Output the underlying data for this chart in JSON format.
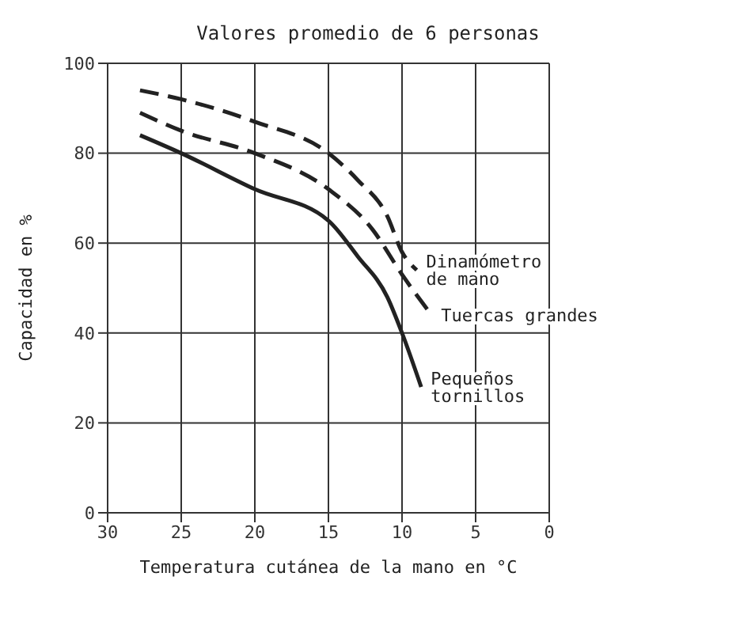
{
  "chart_data": {
    "type": "line",
    "title": "Valores promedio de 6 personas",
    "xlabel": "Temperatura cutánea de la mano en °C",
    "ylabel": "Capacidad en %",
    "xlim": [
      30,
      0
    ],
    "xticks": [
      30,
      25,
      20,
      15,
      10,
      5,
      0
    ],
    "ylim": [
      0,
      100
    ],
    "yticks": [
      0,
      20,
      40,
      60,
      80,
      100
    ],
    "grid": true,
    "marker": "none",
    "series": [
      {
        "name": "Dinamómetro de mano",
        "color": "#222222",
        "line_style": "dashed",
        "x": [
          27.8,
          25,
          20,
          15,
          13,
          11,
          10,
          9
        ],
        "values": [
          94,
          92,
          87,
          80,
          74,
          66,
          58,
          54
        ]
      },
      {
        "name": "Tuercas grandes",
        "color": "#222222",
        "line_style": "dashed",
        "x": [
          27.8,
          25,
          20,
          15,
          12,
          10,
          8
        ],
        "values": [
          89,
          85,
          80,
          72,
          63,
          53,
          44
        ]
      },
      {
        "name": "Pequeños tornillos",
        "color": "#222222",
        "line_style": "solid",
        "x": [
          27.8,
          25,
          20,
          15,
          13,
          11,
          10,
          8.7
        ],
        "values": [
          84,
          80,
          72,
          65,
          57,
          48,
          40,
          28
        ]
      }
    ]
  }
}
